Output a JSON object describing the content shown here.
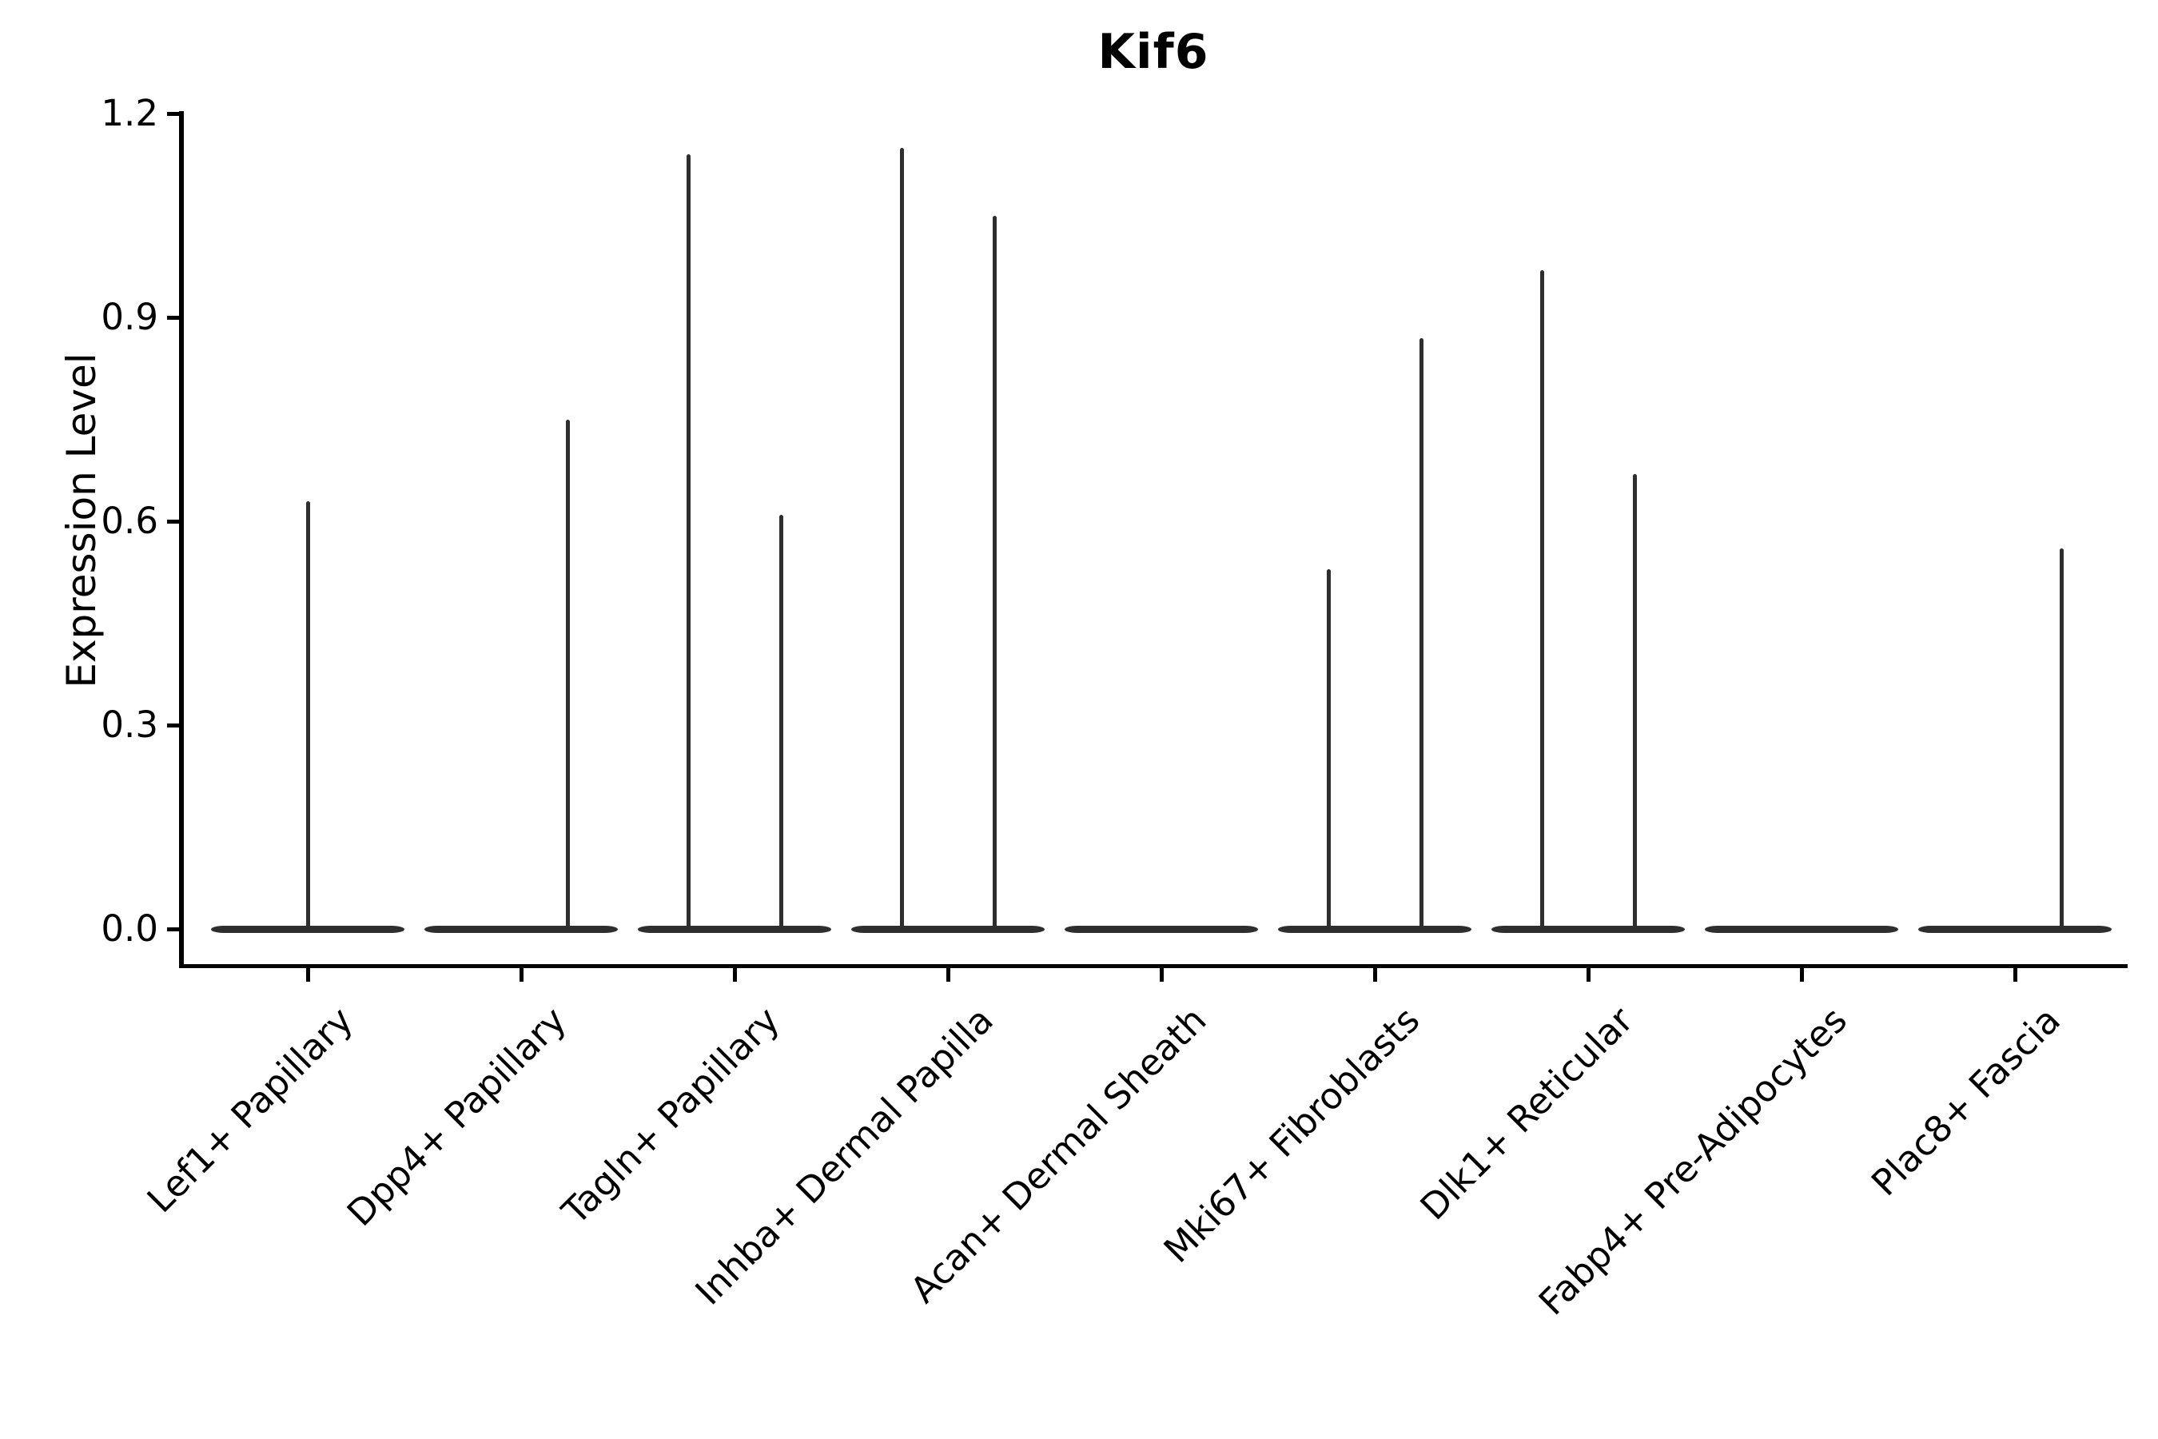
{
  "title": "Kif6",
  "axes": {
    "ylabel": "Expression Level",
    "ytick_labels": [
      "0.0",
      "0.3",
      "0.6",
      "0.9",
      "1.2"
    ]
  },
  "colors": {
    "violin": "#2e2e2e",
    "axis": "#000000",
    "background": "#ffffff"
  },
  "chart_data": {
    "type": "violin",
    "title": "Kif6",
    "xlabel": "",
    "ylabel": "Expression Level",
    "ylim": [
      -0.05,
      1.2
    ],
    "yticks": [
      0.0,
      0.3,
      0.6,
      0.9,
      1.2
    ],
    "grid": false,
    "legend": "none",
    "description": "Violin plot of Kif6 expression per fibroblast cell-type cluster; each violin is a flat band at 0 with thin spikes reaching the few non-zero expression values.",
    "categories": [
      "Lef1+ Papillary",
      "Dpp4+ Papillary",
      "Tagln+ Papillary",
      "Inhba+ Dermal Papilla",
      "Acan+ Dermal Sheath",
      "Mki67+ Fibroblasts",
      "Dlk1+ Reticular",
      "Fabp4+ Pre-Adipocytes",
      "Plac8+ Fascia"
    ],
    "series": [
      {
        "name": "Lef1+ Papillary",
        "baseline_value": 0.0,
        "spikes": [
          {
            "value": 0.63,
            "x_offset": 0
          }
        ]
      },
      {
        "name": "Dpp4+ Papillary",
        "baseline_value": 0.0,
        "spikes": [
          {
            "value": 0.75,
            "x_offset": 58
          }
        ]
      },
      {
        "name": "Tagln+ Papillary",
        "baseline_value": 0.0,
        "spikes": [
          {
            "value": 1.14,
            "x_offset": -58
          },
          {
            "value": 0.61,
            "x_offset": 58
          }
        ]
      },
      {
        "name": "Inhba+ Dermal Papilla",
        "baseline_value": 0.0,
        "spikes": [
          {
            "value": 1.15,
            "x_offset": -58
          },
          {
            "value": 1.05,
            "x_offset": 58
          }
        ]
      },
      {
        "name": "Acan+ Dermal Sheath",
        "baseline_value": 0.0,
        "spikes": []
      },
      {
        "name": "Mki67+ Fibroblasts",
        "baseline_value": 0.0,
        "spikes": [
          {
            "value": 0.53,
            "x_offset": -58
          },
          {
            "value": 0.87,
            "x_offset": 58
          }
        ]
      },
      {
        "name": "Dlk1+ Reticular",
        "baseline_value": 0.0,
        "spikes": [
          {
            "value": 0.97,
            "x_offset": -58
          },
          {
            "value": 0.67,
            "x_offset": 58
          }
        ]
      },
      {
        "name": "Fabp4+ Pre-Adipocytes",
        "baseline_value": 0.0,
        "spikes": []
      },
      {
        "name": "Plac8+ Fascia",
        "baseline_value": 0.0,
        "spikes": [
          {
            "value": 0.56,
            "x_offset": 58
          }
        ]
      }
    ]
  }
}
